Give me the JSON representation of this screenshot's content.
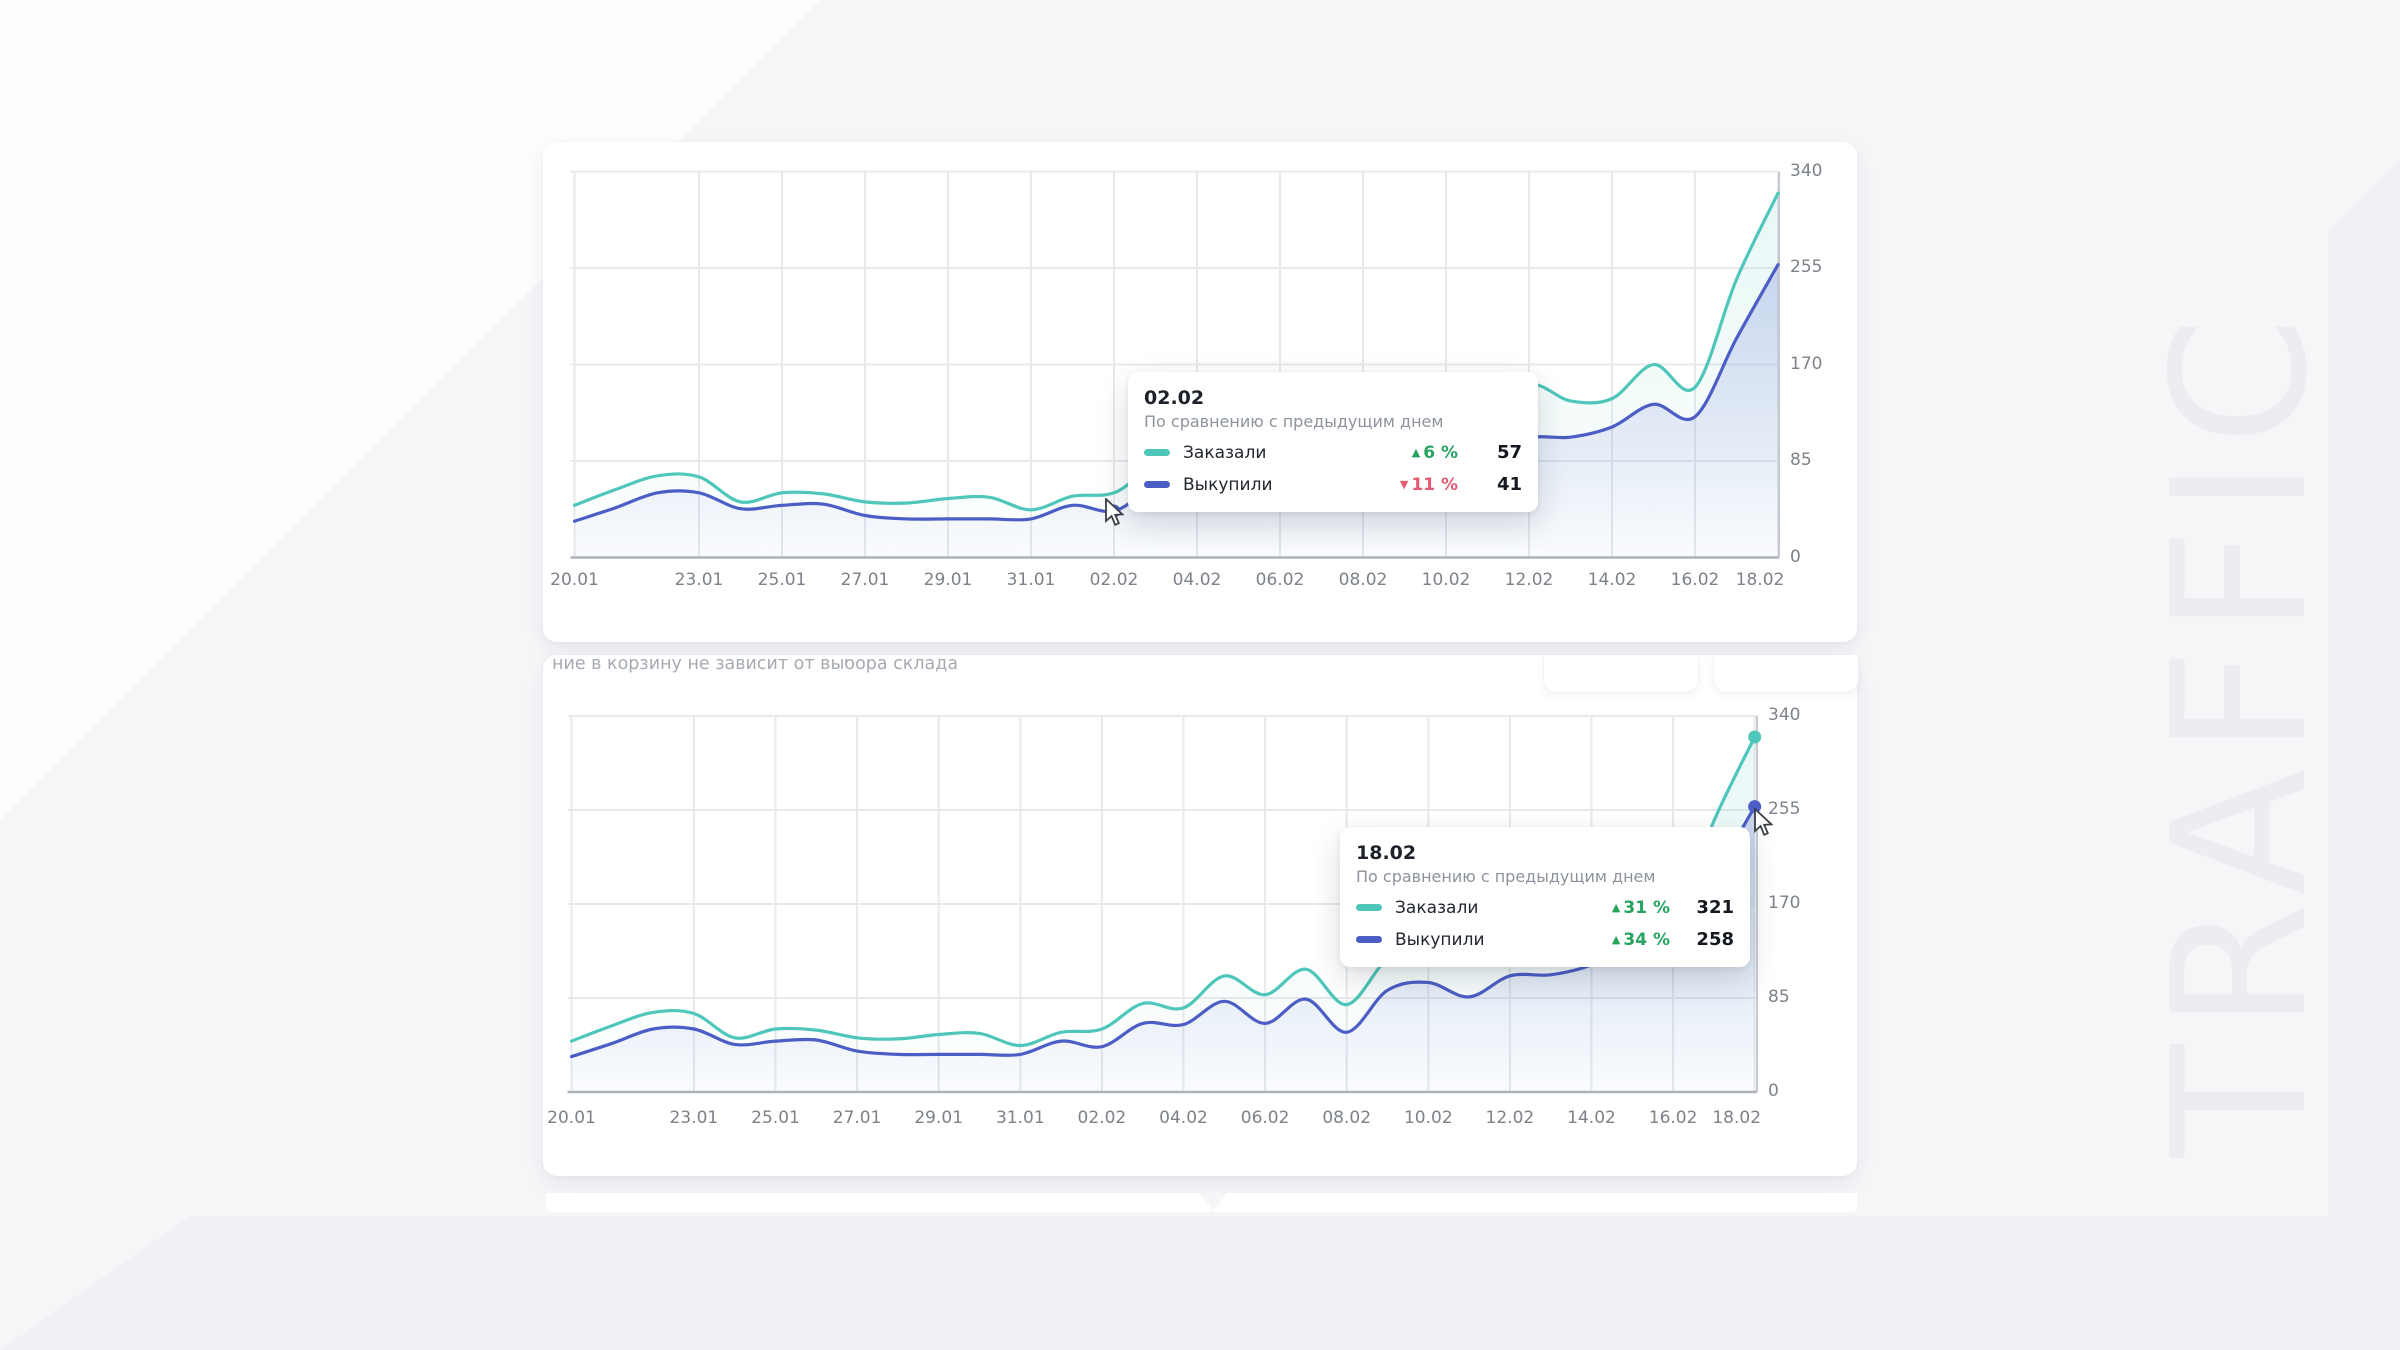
{
  "watermark": "TRAFFIC",
  "card2_header_clipped": "ние в корзину не зависит от выбора склада",
  "colors": {
    "teal": "#4ec6b9",
    "blue": "#4c5ec6",
    "teal_fill": "#4ec6b9",
    "blue_fill": "#5b6fd0",
    "green": "#27a360",
    "red": "#e25b72",
    "grid": "#e7e9ec",
    "axis_bottom": "#aeb3b9",
    "axis_right": "#c6cad0",
    "tick_label": "#7c8289"
  },
  "chart_data": {
    "type": "line",
    "smooth": true,
    "grid": true,
    "title": "",
    "xlabel": "",
    "ylabel": "",
    "ylim": [
      0,
      340
    ],
    "yticks": [
      0,
      85,
      170,
      255,
      340
    ],
    "xtick_labels": [
      "20.01",
      "23.01",
      "25.01",
      "27.01",
      "29.01",
      "31.01",
      "02.02",
      "04.02",
      "06.02",
      "08.02",
      "10.02",
      "12.02",
      "14.02",
      "16.02",
      "18.02"
    ],
    "categories": [
      "20.01",
      "21.01",
      "22.01",
      "23.01",
      "24.01",
      "25.01",
      "26.01",
      "27.01",
      "28.01",
      "29.01",
      "30.01",
      "31.01",
      "01.02",
      "02.02",
      "03.02",
      "04.02",
      "05.02",
      "06.02",
      "07.02",
      "08.02",
      "09.02",
      "10.02",
      "11.02",
      "12.02",
      "13.02",
      "14.02",
      "15.02",
      "16.02",
      "17.02",
      "18.02"
    ],
    "series": [
      {
        "name": "Заказали",
        "color": "#4ec6b9",
        "values": [
          46,
          60,
          72,
          71,
          49,
          57,
          56,
          49,
          48,
          52,
          53,
          42,
          54,
          57,
          80,
          76,
          105,
          88,
          111,
          79,
          120,
          130,
          118,
          152,
          138,
          140,
          170,
          150,
          245,
          321
        ]
      },
      {
        "name": "Выкупили",
        "color": "#4c5ec6",
        "values": [
          32,
          44,
          57,
          57,
          43,
          46,
          47,
          37,
          34,
          34,
          34,
          34,
          46,
          41,
          62,
          61,
          82,
          62,
          84,
          54,
          92,
          99,
          86,
          105,
          106,
          115,
          135,
          124,
          193,
          258
        ]
      }
    ],
    "legend_position": "tooltip"
  },
  "charts": [
    {
      "name": "top",
      "tooltip": {
        "date": "02.02",
        "subtitle": "По сравнению с предыдущим днем",
        "rows": [
          {
            "label": "Заказали",
            "arrow": "▲",
            "pct": "6 %",
            "value": "57",
            "trend_class": "tt-pct trend-up"
          },
          {
            "label": "Выкупили",
            "arrow": "▼",
            "pct": "11 %",
            "value": "41",
            "trend_class": "tt-pct trend-down"
          }
        ]
      }
    },
    {
      "name": "bottom",
      "tooltip": {
        "date": "18.02",
        "subtitle": "По сравнению с предыдущим днем",
        "rows": [
          {
            "label": "Заказали",
            "arrow": "▲",
            "pct": "31 %",
            "value": "321",
            "trend_class": "tt-pct trend-up"
          },
          {
            "label": "Выкупили",
            "arrow": "▲",
            "pct": "34 %",
            "value": "258",
            "trend_class": "tt-pct trend-up"
          }
        ]
      }
    }
  ]
}
